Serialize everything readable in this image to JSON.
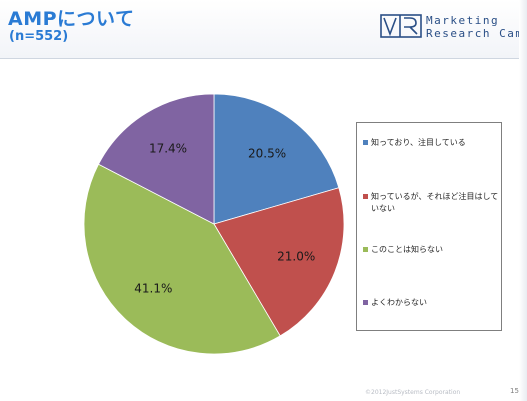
{
  "header": {
    "title": "AMPについて",
    "subtitle": "(n=552)"
  },
  "logo": {
    "line1": "Marketing",
    "line2": "Research Camp",
    "color": "#2a4f86"
  },
  "footer": {
    "copyright": "©2012JustSystems Corporation",
    "page_number": "15"
  },
  "chart_data": {
    "type": "pie",
    "start_angle_deg": 0,
    "direction": "clockwise",
    "slices": [
      {
        "name": "知っており、注目している",
        "value": 20.5,
        "label": "20.5%",
        "color": "#4f81bd"
      },
      {
        "name": "知っているが、それほど注目はしていない",
        "value": 21.0,
        "label": "21.0%",
        "color": "#c0504d"
      },
      {
        "name": "このことは知らない",
        "value": 41.1,
        "label": "41.1%",
        "color": "#9bbb59"
      },
      {
        "name": "よくわからない",
        "value": 17.4,
        "label": "17.4%",
        "color": "#8064a2"
      }
    ],
    "legend_position": "right"
  }
}
